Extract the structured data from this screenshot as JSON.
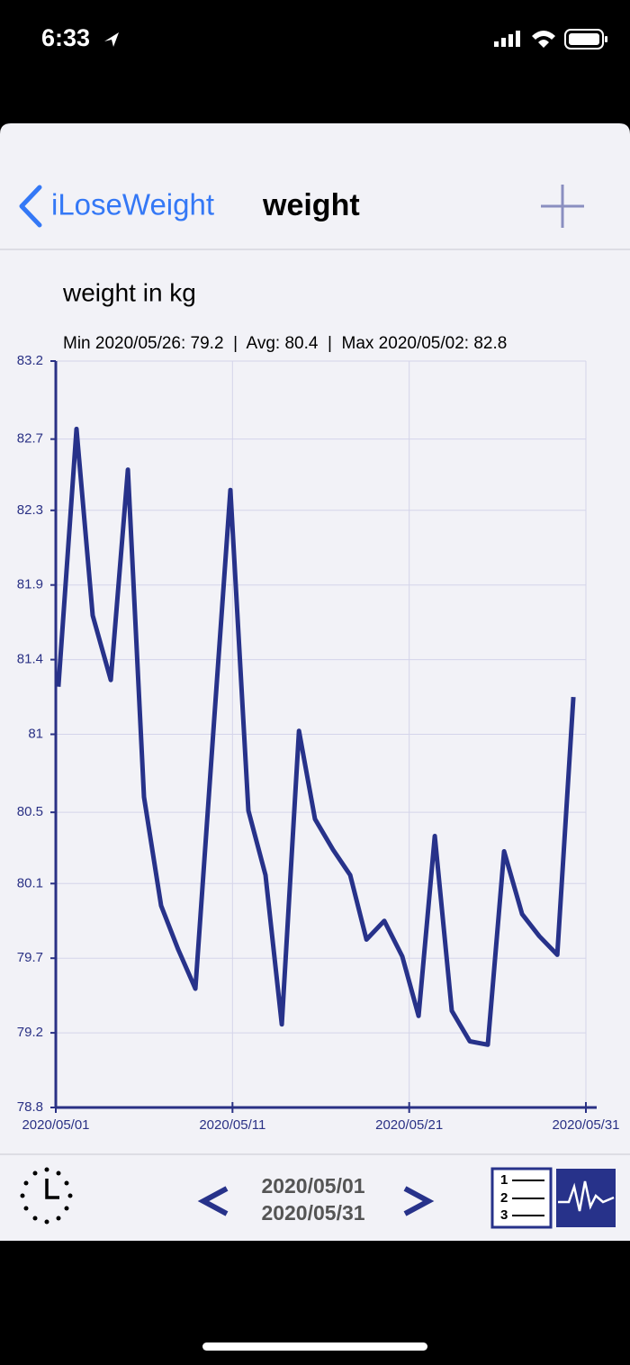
{
  "status_bar": {
    "time": "6:33"
  },
  "nav": {
    "back": "iLoseWeight",
    "title": "weight"
  },
  "chart_data": {
    "type": "line",
    "title": "weight in kg",
    "subtitle": "Min 2020/05/26: 79.2  |  Avg: 80.4  |  Max 2020/05/02: 82.8",
    "color": "#27328a",
    "grid": true,
    "x": [
      1.15,
      2.17,
      3.09,
      4.11,
      5.08,
      5.99,
      6.96,
      7.93,
      8.9,
      9.92,
      10.88,
      11.9,
      12.87,
      13.79,
      14.76,
      15.67,
      16.69,
      17.66,
      18.58,
      19.59,
      20.61,
      21.53,
      22.45,
      23.41,
      24.43,
      25.45,
      26.37,
      27.39,
      28.36,
      29.38,
      30.29
    ],
    "values": [
      81.28,
      82.8,
      81.7,
      81.32,
      82.56,
      80.63,
      79.99,
      79.73,
      79.5,
      81.02,
      82.44,
      80.55,
      80.17,
      79.29,
      81.02,
      80.5,
      80.32,
      80.17,
      79.79,
      79.9,
      79.69,
      79.34,
      80.4,
      79.37,
      79.19,
      79.17,
      80.31,
      79.94,
      79.81,
      79.7,
      81.22
    ],
    "xlim": [
      1,
      31
    ],
    "xticks": [
      {
        "value": 1,
        "label": "2020/05/01"
      },
      {
        "value": 11,
        "label": "2020/05/11"
      },
      {
        "value": 21,
        "label": "2020/05/21"
      },
      {
        "value": 31,
        "label": "2020/05/31"
      }
    ],
    "ylim": [
      78.8,
      83.2
    ],
    "yticks": [
      78.8,
      {
        "value": 79.24,
        "label": "79.2"
      },
      {
        "value": 79.68,
        "label": "79.7"
      },
      {
        "value": 80.12,
        "label": "80.1"
      },
      {
        "value": 80.54,
        "label": "80.5"
      },
      81.0,
      {
        "value": 81.44,
        "label": "81.4"
      },
      {
        "value": 81.88,
        "label": "81.9"
      },
      {
        "value": 82.32,
        "label": "82.3"
      },
      {
        "value": 82.74,
        "label": "82.7"
      },
      83.2
    ]
  },
  "toolbar": {
    "date_from": "2020/05/01",
    "date_to": "2020/05/31"
  }
}
